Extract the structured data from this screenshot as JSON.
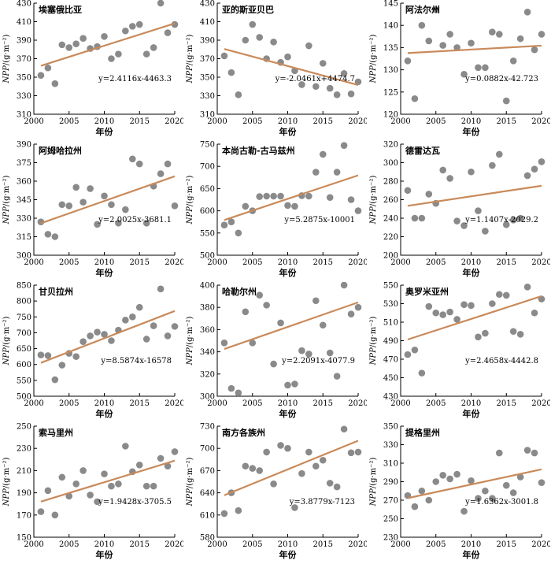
{
  "x_label": "年份",
  "y_label_italic": "NPP",
  "y_label_unit": "/(g·m⁻²)",
  "colors": {
    "point": "#8a8a8a",
    "fit_line": "#c98a5a"
  },
  "chart_data": [
    {
      "type": "scatter",
      "title": "埃塞俄比亚",
      "xlim": [
        2000,
        2020
      ],
      "ylim": [
        310,
        430
      ],
      "xticks": [
        2000,
        2005,
        2010,
        2015,
        2020
      ],
      "yticks": [
        310,
        330,
        350,
        370,
        390,
        410,
        430
      ],
      "x": [
        2001,
        2002,
        2003,
        2004,
        2005,
        2006,
        2007,
        2008,
        2009,
        2010,
        2011,
        2012,
        2013,
        2014,
        2015,
        2016,
        2017,
        2018,
        2019,
        2020
      ],
      "y": [
        352,
        360,
        343,
        385,
        382,
        386,
        392,
        381,
        383,
        394,
        370,
        375,
        400,
        405,
        407,
        375,
        382,
        430,
        398,
        407
      ],
      "equation": "y=2.4116x-4463.3",
      "fit": {
        "slope": 2.4116,
        "intercept": -4463.3
      }
    },
    {
      "type": "scatter",
      "title": "亚的斯亚贝巴",
      "xlim": [
        2000,
        2020
      ],
      "ylim": [
        310,
        430
      ],
      "xticks": [
        2000,
        2005,
        2010,
        2015,
        2020
      ],
      "yticks": [
        310,
        330,
        350,
        370,
        390,
        410,
        430
      ],
      "x": [
        2001,
        2002,
        2003,
        2004,
        2005,
        2006,
        2007,
        2008,
        2009,
        2010,
        2011,
        2012,
        2013,
        2014,
        2015,
        2016,
        2017,
        2018,
        2019,
        2020
      ],
      "y": [
        373,
        355,
        331,
        390,
        407,
        393,
        370,
        388,
        366,
        372,
        357,
        342,
        384,
        340,
        365,
        338,
        331,
        354,
        332,
        345
      ],
      "equation": "y=-2.0461x+4474.7",
      "fit": {
        "slope": -2.0461,
        "intercept": 4474.7
      }
    },
    {
      "type": "scatter",
      "title": "阿法尔州",
      "xlim": [
        2000,
        2020
      ],
      "ylim": [
        120,
        145
      ],
      "xticks": [
        2000,
        2005,
        2010,
        2015,
        2020
      ],
      "yticks": [
        120,
        125,
        130,
        135,
        140,
        145
      ],
      "x": [
        2001,
        2002,
        2003,
        2004,
        2005,
        2006,
        2007,
        2008,
        2009,
        2010,
        2011,
        2012,
        2013,
        2014,
        2015,
        2016,
        2017,
        2018,
        2019,
        2020
      ],
      "y": [
        132,
        123.5,
        140,
        136.5,
        143.5,
        135.5,
        138,
        135,
        129,
        136,
        130.5,
        130.5,
        138.5,
        138,
        123,
        132,
        137,
        143,
        134.5,
        138
      ],
      "equation": "y=0.0882x-42.723",
      "fit": {
        "slope": 0.0882,
        "intercept": -42.723
      }
    },
    {
      "type": "scatter",
      "title": "阿姆哈拉州",
      "xlim": [
        2000,
        2020
      ],
      "ylim": [
        300,
        390
      ],
      "xticks": [
        2000,
        2005,
        2010,
        2015,
        2020
      ],
      "yticks": [
        300,
        315,
        330,
        345,
        360,
        375,
        390
      ],
      "x": [
        2001,
        2002,
        2003,
        2004,
        2005,
        2006,
        2007,
        2008,
        2009,
        2010,
        2011,
        2012,
        2013,
        2014,
        2015,
        2016,
        2017,
        2018,
        2019,
        2020
      ],
      "y": [
        327,
        317,
        315,
        341,
        340,
        355,
        343,
        354,
        325,
        348,
        341,
        326,
        337,
        378,
        374,
        326,
        356,
        366,
        374,
        340
      ],
      "equation": "y=2.0025x-3681.1",
      "fit": {
        "slope": 2.0025,
        "intercept": -3681.1
      }
    },
    {
      "type": "scatter",
      "title": "本尚古勒-古马兹州",
      "xlim": [
        2000,
        2020
      ],
      "ylim": [
        500,
        750
      ],
      "xticks": [
        2000,
        2005,
        2010,
        2015,
        2020
      ],
      "yticks": [
        500,
        550,
        600,
        650,
        700,
        750
      ],
      "x": [
        2001,
        2002,
        2003,
        2004,
        2005,
        2006,
        2007,
        2008,
        2009,
        2010,
        2011,
        2012,
        2013,
        2014,
        2015,
        2016,
        2017,
        2018,
        2019,
        2020
      ],
      "y": [
        568,
        575,
        550,
        610,
        600,
        632,
        633,
        633,
        633,
        612,
        610,
        634,
        633,
        687,
        727,
        630,
        687,
        747,
        625,
        600
      ],
      "equation": "y=5.2875x-10001",
      "fit": {
        "slope": 5.2875,
        "intercept": -10001
      }
    },
    {
      "type": "scatter",
      "title": "德雷达瓦",
      "xlim": [
        2000,
        2020
      ],
      "ylim": [
        200,
        320
      ],
      "xticks": [
        2000,
        2005,
        2010,
        2015,
        2020
      ],
      "yticks": [
        200,
        220,
        240,
        260,
        280,
        300,
        320
      ],
      "x": [
        2001,
        2002,
        2003,
        2004,
        2005,
        2006,
        2007,
        2008,
        2009,
        2010,
        2011,
        2012,
        2013,
        2014,
        2015,
        2016,
        2017,
        2018,
        2019,
        2020
      ],
      "y": [
        270,
        240,
        240,
        266,
        256,
        292,
        283,
        237,
        232,
        290,
        248,
        226,
        297,
        309,
        233,
        238,
        240,
        286,
        293,
        301
      ],
      "equation": "y=1.1407x-2029.2",
      "fit": {
        "slope": 1.1407,
        "intercept": -2029.2
      }
    },
    {
      "type": "scatter",
      "title": "甘贝拉州",
      "xlim": [
        2000,
        2020
      ],
      "ylim": [
        500,
        850
      ],
      "xticks": [
        2000,
        2005,
        2010,
        2015,
        2020
      ],
      "yticks": [
        500,
        550,
        600,
        650,
        700,
        750,
        800,
        850
      ],
      "x": [
        2001,
        2002,
        2003,
        2004,
        2005,
        2006,
        2007,
        2008,
        2009,
        2010,
        2011,
        2012,
        2013,
        2014,
        2015,
        2016,
        2017,
        2018,
        2019,
        2020
      ],
      "y": [
        630,
        628,
        552,
        598,
        635,
        625,
        672,
        690,
        702,
        695,
        675,
        708,
        740,
        750,
        780,
        680,
        722,
        838,
        690,
        720
      ],
      "equation": "y=8.5874x-16578",
      "fit": {
        "slope": 8.5874,
        "intercept": -16578
      }
    },
    {
      "type": "scatter",
      "title": "哈勒尔州",
      "xlim": [
        2000,
        2020
      ],
      "ylim": [
        300,
        400
      ],
      "xticks": [
        2000,
        2005,
        2010,
        2015,
        2020
      ],
      "yticks": [
        300,
        320,
        340,
        360,
        380,
        400
      ],
      "x": [
        2001,
        2002,
        2003,
        2004,
        2005,
        2006,
        2007,
        2008,
        2009,
        2010,
        2011,
        2012,
        2013,
        2014,
        2015,
        2016,
        2017,
        2018,
        2019,
        2020
      ],
      "y": [
        348,
        307,
        303,
        376,
        348,
        391,
        382,
        329,
        366,
        310,
        311,
        341,
        338,
        386,
        364,
        339,
        318,
        400,
        374,
        380
      ],
      "equation": "y=2.2091x-4077.9",
      "fit": {
        "slope": 2.2091,
        "intercept": -4077.9
      }
    },
    {
      "type": "scatter",
      "title": "奥罗米亚州",
      "xlim": [
        2000,
        2020
      ],
      "ylim": [
        430,
        550
      ],
      "xticks": [
        2000,
        2005,
        2010,
        2015,
        2020
      ],
      "yticks": [
        430,
        450,
        470,
        490,
        510,
        530,
        550
      ],
      "x": [
        2001,
        2002,
        2003,
        2004,
        2005,
        2006,
        2007,
        2008,
        2009,
        2010,
        2011,
        2012,
        2013,
        2014,
        2015,
        2016,
        2017,
        2018,
        2019,
        2020
      ],
      "y": [
        475,
        480,
        455,
        527,
        520,
        518,
        521,
        513,
        529,
        528,
        494,
        498,
        530,
        540,
        539,
        500,
        497,
        548,
        520,
        535
      ],
      "equation": "y=2.4658x-4442.8",
      "fit": {
        "slope": 2.4658,
        "intercept": -4442.8
      }
    },
    {
      "type": "scatter",
      "title": "索马里州",
      "xlim": [
        2000,
        2020
      ],
      "ylim": [
        150,
        250
      ],
      "xticks": [
        2000,
        2005,
        2010,
        2015,
        2020
      ],
      "yticks": [
        150,
        170,
        190,
        210,
        230,
        250
      ],
      "x": [
        2001,
        2002,
        2003,
        2004,
        2005,
        2006,
        2007,
        2008,
        2009,
        2010,
        2011,
        2012,
        2013,
        2014,
        2015,
        2016,
        2017,
        2018,
        2019,
        2020
      ],
      "y": [
        173,
        192,
        170,
        204,
        187,
        198,
        210,
        188,
        182,
        207,
        196,
        198,
        232,
        209,
        215,
        196,
        196,
        221,
        214,
        227
      ],
      "equation": "y=1.9428x-3705.5",
      "fit": {
        "slope": 1.9428,
        "intercept": -3705.5
      }
    },
    {
      "type": "scatter",
      "title": "南方各族州",
      "xlim": [
        2000,
        2020
      ],
      "ylim": [
        580,
        730
      ],
      "xticks": [
        2000,
        2005,
        2010,
        2015,
        2020
      ],
      "yticks": [
        580,
        610,
        640,
        670,
        700,
        730
      ],
      "x": [
        2001,
        2002,
        2003,
        2004,
        2005,
        2006,
        2007,
        2008,
        2009,
        2010,
        2011,
        2012,
        2013,
        2014,
        2015,
        2016,
        2017,
        2018,
        2019,
        2020
      ],
      "y": [
        612,
        640,
        616,
        676,
        673,
        670,
        695,
        652,
        704,
        700,
        620,
        666,
        695,
        676,
        684,
        653,
        648,
        726,
        694,
        695
      ],
      "equation": "y=3.8779x-7123",
      "fit": {
        "slope": 3.8779,
        "intercept": -7123
      }
    },
    {
      "type": "scatter",
      "title": "提格里州",
      "xlim": [
        2000,
        2020
      ],
      "ylim": [
        230,
        350
      ],
      "xticks": [
        2000,
        2005,
        2010,
        2015,
        2020
      ],
      "yticks": [
        230,
        250,
        270,
        290,
        310,
        330,
        350
      ],
      "x": [
        2001,
        2002,
        2003,
        2004,
        2005,
        2006,
        2007,
        2008,
        2009,
        2010,
        2011,
        2012,
        2013,
        2014,
        2015,
        2016,
        2017,
        2018,
        2019,
        2020
      ],
      "y": [
        275,
        263,
        280,
        270,
        290,
        297,
        293,
        298,
        258,
        291,
        272,
        280,
        272,
        321,
        286,
        278,
        295,
        324,
        321,
        289
      ],
      "equation": "y=1.6362x-3001.8",
      "fit": {
        "slope": 1.6362,
        "intercept": -3001.8
      }
    }
  ]
}
